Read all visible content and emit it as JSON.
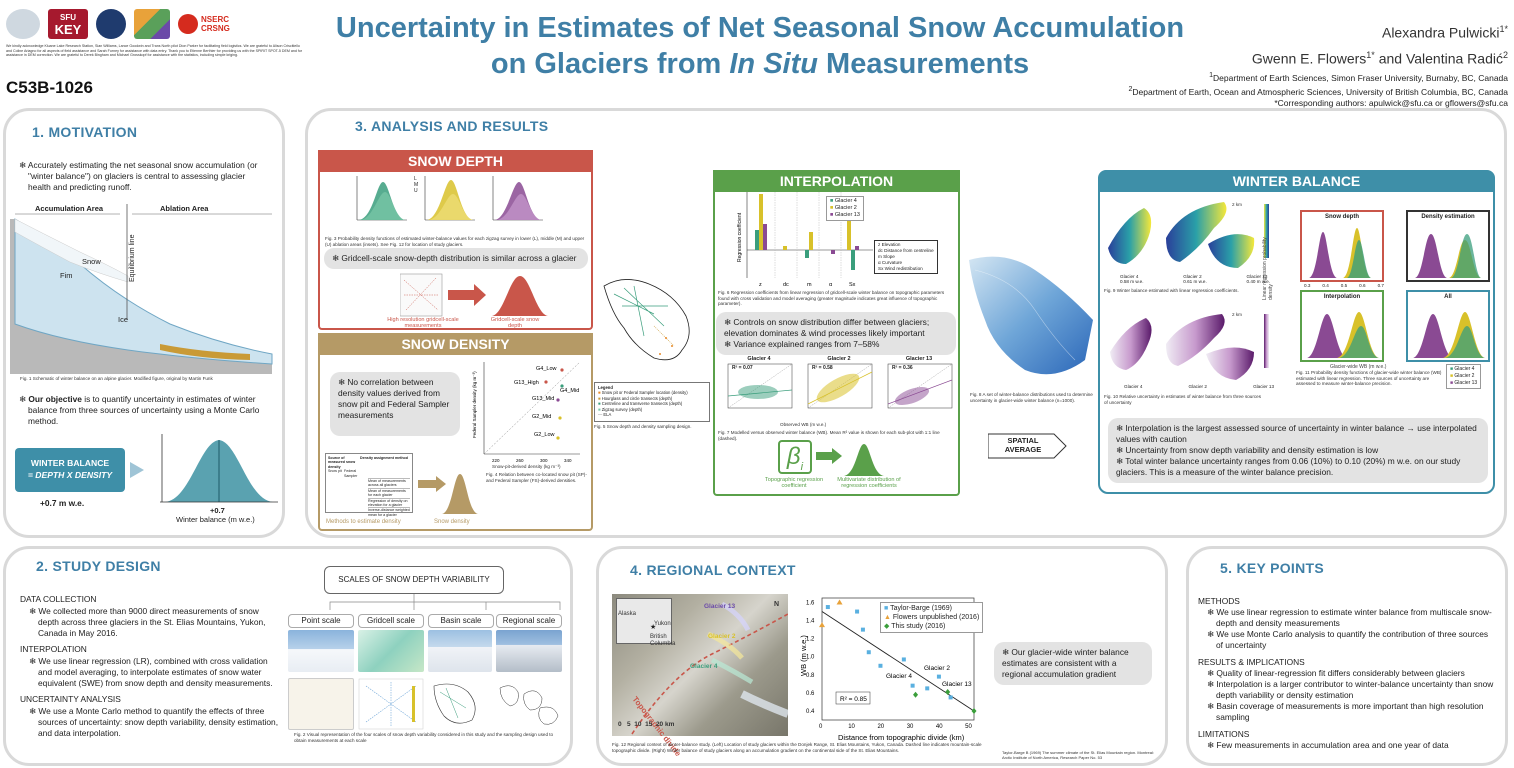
{
  "header": {
    "poster_id": "C53B-1026",
    "title_line1": "Uncertainty in Estimates of Net Seasonal Snow Accumulation",
    "title_line2_pre": "on Glaciers from ",
    "title_line2_italic": "In Situ",
    "title_line2_post": " Measurements",
    "author1": "Alexandra Pulwicki",
    "author1_sup": "1*",
    "author2": "Gwenn E. Flowers",
    "author2_sup": "1*",
    "author_and": " and Valentina Radić",
    "author3_sup": "2",
    "affil1": "Department of Earth Sciences, Simon Fraser University, Burnaby, BC, Canada",
    "affil2": "Department of Earth, Ocean and Atmospheric Sciences, University of British Columbia, BC, Canada",
    "affil3": "*Corresponding authors: apulwick@sfu.ca or gflowers@sfu.ca",
    "logos": [
      "SFU",
      "KEY",
      "NSERC CRSNG"
    ],
    "acknowledgement": "We kindly acknowledge Kluane Lake Research Station, Sian Williams, Lance Goodwin and Trans North pilot Dion Parker for facilitating field logistics. We are grateful to Alison Criscitiello and Coline Ariagno for all aspects of field assistance and Sarah Furney for assistance with data entry. Thank you to Etienne Berthier for providing us with the SPIRIT SPOT-5 DEM and for assistance in DEM correction. We are grateful to Derek Bingham and Michael Grosskopf for assistance with the statistics, including simple kriging."
  },
  "motivation": {
    "title": "1. MOTIVATION",
    "bullet1": "Accurately estimating the net seasonal snow accumulation (or \"winter balance\") on glaciers is central to assessing glacier health and predicting runoff.",
    "fig_labels": {
      "accumulation": "Accumulation Area",
      "ablation": "Ablation Area",
      "snow": "Snow",
      "fim": "Fim",
      "ice": "Ice",
      "eqline": "Equilibrium line"
    },
    "fig1_caption": "Fig. 1 Schematic of winter balance on an alpine glacier. Modified figure, original by Martin Funk",
    "objective_pre": "Our objective",
    "objective_post": " is to quantify uncertainty in estimates of winter balance from three sources of uncertainty using a Monte Carlo method.",
    "wb_box_line1": "WINTER BALANCE",
    "wb_box_line2": "= DEPTH X DENSITY",
    "wb_value": "+0.7 m w.e.",
    "dist_value": "+0.7",
    "dist_axis": "Winter balance (m w.e.)"
  },
  "analysis": {
    "title": "3. ANALYSIS AND RESULTS",
    "snow_depth": {
      "banner": "SNOW DEPTH",
      "fig3_caption": "Fig. 3 Probability density functions of estimated winter-balance values for each zigzag survey in lower (L), middle (M) and upper (U) ablation areas (insets). See Fig. 12 for location of study glaciers.",
      "finding": "Gridcell-scale snow-depth distribution is similar across a glacier",
      "left_label": "High resolution gridcell-scale measurements",
      "right_label": "Gridcell-scale snow depth",
      "legend": [
        "L",
        "M",
        "U"
      ]
    },
    "snow_density": {
      "banner": "SNOW DENSITY",
      "finding": "No correlation between density values derived from snow pit and Federal Sampler measurements",
      "fig4_caption": "Fig. 4 Relation between co-located snow pit (SP)- and Federal Sampler (FS)-derived densities.",
      "points": [
        "G4_Low",
        "G13_High",
        "G4_Mid",
        "G13_Mid",
        "G2_Mid",
        "G2_Low"
      ],
      "xaxis": "Snow-pit-derived density (kg m⁻³)",
      "yaxis": "Federal Sampler density (kg m⁻³)",
      "xticks": [
        "220",
        "260",
        "300",
        "340"
      ],
      "bottom_left": "Methods to estimate density",
      "bottom_right": "Snow density",
      "table_header": [
        "Source of measured snow density",
        "Snow pit",
        "Federal Sampler",
        "Density assignment method"
      ],
      "table_rows": [
        "Mean of measurements across all glaciers",
        "Mean of measurements for each glacier",
        "Regression of density on elevation for a glacier",
        "Inverse-distance weighted mean for a glacier"
      ]
    },
    "map_legend": {
      "title": "Legend",
      "items": [
        "Snow pit or Federal Sampler location (density)",
        "Hourglass and circle transects (depth)",
        "Centreline and transverse transects (depth)",
        "Zigzag survey (depth)",
        "ELA"
      ],
      "fig5_caption": "Fig. 5 Snow depth and density sampling design."
    },
    "interpolation": {
      "banner": "INTERPOLATION",
      "ylabel": "Regression coefficient",
      "xticks": [
        "z",
        "dc",
        "m",
        "α",
        "Sx"
      ],
      "legend": [
        "Glacier 4",
        "Glacier 2",
        "Glacier 13"
      ],
      "param_legend": [
        "z Elevation",
        "dc Distance from centreline",
        "m Slope",
        "α Curvature",
        "Sx Wind redistribution"
      ],
      "fig6_caption": "Fig. 6 Regression coefficients from linear regression of gridcell-scale winter balance on topographic parameters found with cross validation and model averaging (greater magnitude indicates great influence of topographic parameter).",
      "findings": [
        "Controls on snow distribution differ between glaciers; elevation dominates & wind processes likely important",
        "Variance explained ranges from 7–58%"
      ],
      "scatter_titles": [
        "Glacier 4",
        "Glacier 2",
        "Glacier 13"
      ],
      "r2": [
        "R² = 0.07",
        "R² = 0.58",
        "R² = 0.36"
      ],
      "scatter_xlabel": "Observed WB (m w.e.)",
      "scatter_ylabel": "Estimated WB (m w.e.)",
      "fig7_caption": "Fig. 7 Modelled versus observed winter balance (WB). Mean R² value is shown for each sub-plot with 1:1 line (dashed).",
      "beta": "β",
      "beta_sub": "i",
      "left_label": "Topographic regression coefficient",
      "right_label": "Multivariate distribution of regression coefficients"
    },
    "fig8_caption": "Fig. 8 A set of winter-balance distributions used to determine uncertainty in glacier-wide winter balance (n=1000).",
    "spatial_average": "SPATIAL AVERAGE",
    "winter_balance": {
      "banner": "WINTER BALANCE",
      "fig9_caption": "Fig. 9 Winter balance estimated with linear regression coefficients.",
      "fig10_caption": "Fig. 10 Relative uncertainty in estimates of winter balance from three sources of uncertainty",
      "fig11_caption": "Fig. 11 Probability density functions of glacier-wide winter balance (WB) estimated with linear regression. Three sources of uncertainty are assessed to measure winter-balance precision.",
      "glacier_labels": [
        "Glacier 4\n0.58 m w.e.",
        "Glacier 2\n0.61 m w.e.",
        "Glacier 13\n0.40 m w.e."
      ],
      "map_glacier_labels": [
        "Glacier 4",
        "Glacier 2",
        "Glacier 13"
      ],
      "scale_2km": "2 km",
      "boxes": [
        "Snow depth",
        "Density estimation",
        "Interpolation",
        "All"
      ],
      "box_xlabel": "Glacier-wide WB (m w.e.)",
      "box_ylabel": "Linear regression probability density",
      "xticks": [
        "0.3",
        "0.4",
        "0.5",
        "0.6",
        "0.7"
      ],
      "legend": [
        "Glacier 4",
        "Glacier 2",
        "Glacier 13"
      ],
      "findings": [
        "Interpolation is the largest assessed source of uncertainty in winter balance → use interpolated values with caution",
        "Uncertainty from snow depth variability and density estimation is low",
        "Total winter balance uncertainty ranges from 0.06 (10%) to 0.10 (20%) m w.e. on our study glaciers. This is a measure of the winter balance precision."
      ],
      "colors": {
        "g4": "#3a9e7c",
        "g2": "#d8c12a",
        "g13": "#8a4a93"
      }
    }
  },
  "study_design": {
    "title": "2.  STUDY DESIGN",
    "h1": "DATA COLLECTION",
    "t1": "We collected more than 9000 direct measurements of snow depth across three glaciers in the St. Elias Mountains, Yukon, Canada in May 2016.",
    "h2": "INTERPOLATION",
    "t2": "We use linear regression (LR), combined with cross validation and model averaging, to interpolate estimates of snow water equivalent (SWE) from snow depth and density measurements.",
    "h3": "UNCERTAINTY ANALYSIS",
    "t3": "We use a Monte Carlo method to quantify the effects of three sources of uncertainty: snow depth variability, density estimation, and data interpolation.",
    "scales_title": "SCALES OF SNOW DEPTH VARIABILITY",
    "scales": [
      "Point scale",
      "Gridcell scale",
      "Basin scale",
      "Regional scale"
    ],
    "fig2_caption": "Fig. 2 Visual representation of the four scales of snow depth variability considered in this study and the sampling design used to obtain measurements at each scale"
  },
  "regional": {
    "title": "4. REGIONAL CONTEXT",
    "map_labels": {
      "alaska": "Alaska",
      "yukon": "Yukon",
      "bc": "British\nColumbia",
      "divide": "Topographic divide",
      "g13": "Glacier 13",
      "g2": "Glacier 2",
      "g4": "Glacier 4",
      "north": "N",
      "scale": "0   5  10  15  20 km"
    },
    "plot": {
      "ylabel": "WB (m w.e.)",
      "xlabel": "Distance from topographic divide (km)",
      "yticks": [
        "1.6",
        "1.4",
        "1.2",
        "1.0",
        "0.8",
        "0.6",
        "0.4"
      ],
      "xticks": [
        "0",
        "10",
        "20",
        "30",
        "40",
        "50"
      ],
      "legend": [
        "Taylor-Barge (1969)",
        "Flowers unpublished (2016)",
        "This study (2016)"
      ],
      "r2": "R² = 0.85",
      "labels": [
        "Glacier 2",
        "Glacier 4",
        "Glacier 13"
      ]
    },
    "chart_data": {
      "type": "scatter",
      "xlabel": "Distance from topographic divide (km)",
      "ylabel": "WB (m w.e.)",
      "xlim": [
        0,
        52
      ],
      "ylim": [
        0.3,
        1.65
      ],
      "series": [
        {
          "name": "Taylor-Barge (1969)",
          "x": [
            2,
            12,
            14,
            16,
            20,
            28,
            31,
            36,
            40,
            44
          ],
          "y": [
            1.55,
            1.5,
            1.3,
            1.05,
            0.9,
            0.97,
            0.68,
            0.65,
            0.78,
            0.55
          ]
        },
        {
          "name": "Flowers unpublished (2016)",
          "x": [
            0,
            6
          ],
          "y": [
            1.35,
            1.6
          ]
        },
        {
          "name": "This study (2016)",
          "x": [
            32,
            43,
            52
          ],
          "y": [
            0.58,
            0.61,
            0.4
          ]
        }
      ],
      "trend": {
        "x": [
          0,
          52
        ],
        "y": [
          1.5,
          0.4
        ]
      }
    },
    "finding": "Our glacier-wide winter balance estimates are consistent with a regional accumulation gradient",
    "fig12_caption": "Fig. 12 Regional context of winter-balance study. (Left) Location of study glaciers within the Donjek Range, St. Elias Mountains, Yukon, Canada. Dashed line indicates mountain-scale topographic divide. (Right) Winter balance of study glaciers along an accumulation gradient on the continental side of the St. Elias Mountains.",
    "ref": "Taylor-Barge B (1969) The summer climate of the St. Elias Mountain region. Montreal: Arctic Institute of North America, Research Paper No. 53"
  },
  "key_points": {
    "title": "5. KEY POINTS",
    "h1": "METHODS",
    "m": [
      "We use linear regression to estimate winter balance from multiscale snow-depth and density measurements",
      "We use Monte Carlo analysis to quantify the contribution of three sources of uncertainty"
    ],
    "h2": "RESULTS & IMPLICATIONS",
    "r": [
      "Quality of linear-regression fit differs considerably between glaciers",
      "Interpolation is a larger contributor to winter-balance uncertainty than snow depth variability or density estimation",
      "Basin coverage of measurements is more important than high resolution sampling"
    ],
    "h3": "LIMITATIONS",
    "l": [
      "Few measurements in accumulation area and one year of data"
    ]
  }
}
